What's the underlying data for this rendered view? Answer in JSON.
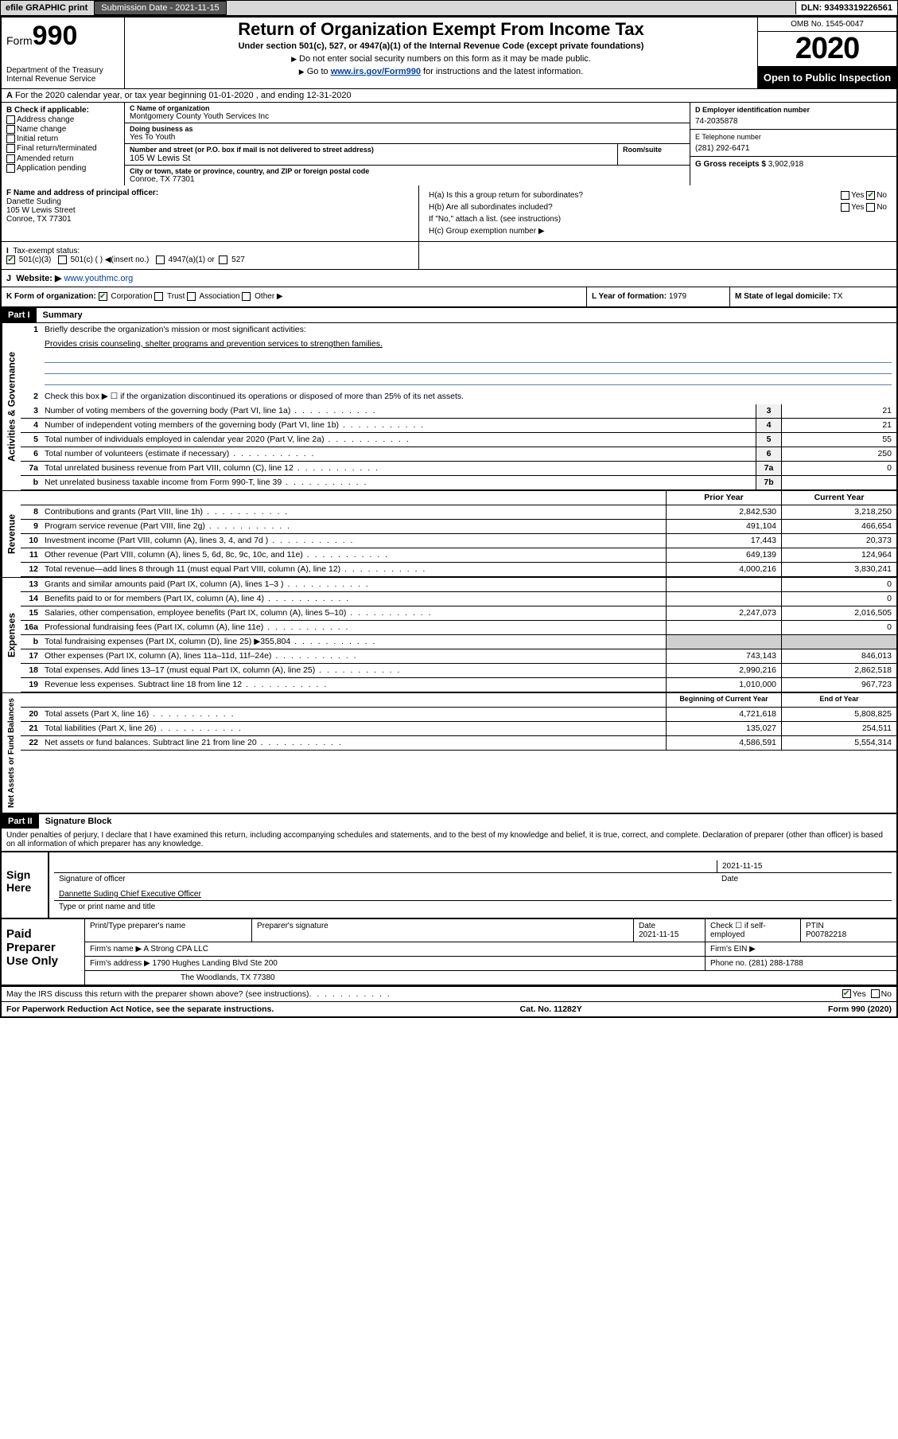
{
  "topbar": {
    "efile": "efile GRAPHIC print",
    "submission_label": "Submission Date - 2021-11-15",
    "dln_label": "DLN: 93493319226561"
  },
  "header": {
    "form_word": "Form",
    "form_num": "990",
    "dept": "Department of the Treasury\nInternal Revenue Service",
    "title": "Return of Organization Exempt From Income Tax",
    "subtitle": "Under section 501(c), 527, or 4947(a)(1) of the Internal Revenue Code (except private foundations)",
    "note1": "Do not enter social security numbers on this form as it may be made public.",
    "note2_pre": "Go to ",
    "note2_link": "www.irs.gov/Form990",
    "note2_post": " for instructions and the latest information.",
    "omb": "OMB No. 1545-0047",
    "year": "2020",
    "open": "Open to Public Inspection"
  },
  "row_a": "For the 2020 calendar year, or tax year beginning 01-01-2020   , and ending 12-31-2020",
  "b": {
    "hdr": "B Check if applicable:",
    "opts": [
      "Address change",
      "Name change",
      "Initial return",
      "Final return/terminated",
      "Amended return",
      "Application pending"
    ]
  },
  "c": {
    "name_lbl": "C Name of organization",
    "name": "Montgomery County Youth Services Inc",
    "dba_lbl": "Doing business as",
    "dba": "Yes To Youth",
    "addr_lbl": "Number and street (or P.O. box if mail is not delivered to street address)",
    "room_lbl": "Room/suite",
    "addr": "105 W Lewis St",
    "city_lbl": "City or town, state or province, country, and ZIP or foreign postal code",
    "city": "Conroe, TX  77301"
  },
  "d": {
    "lbl": "D Employer identification number",
    "val": "74-2035878"
  },
  "e": {
    "lbl": "E Telephone number",
    "val": "(281) 292-6471"
  },
  "g": {
    "lbl": "G Gross receipts $",
    "val": "3,902,918"
  },
  "f": {
    "lbl": "F  Name and address of principal officer:",
    "name": "Danette Suding",
    "addr1": "105 W Lewis Street",
    "addr2": "Conroe, TX  77301"
  },
  "h": {
    "a": "H(a)  Is this a group return for subordinates?",
    "b": "H(b)  Are all subordinates included?",
    "b_note": "If \"No,\" attach a list. (see instructions)",
    "c": "H(c)  Group exemption number ▶",
    "yes": "Yes",
    "no": "No"
  },
  "i": {
    "lbl": "Tax-exempt status:",
    "o1": "501(c)(3)",
    "o2": "501(c) (  ) ◀(insert no.)",
    "o3": "4947(a)(1) or",
    "o4": "527"
  },
  "j": {
    "lbl": "Website: ▶",
    "val": " www.youthmc.org"
  },
  "k": {
    "lbl": "K Form of organization:",
    "o1": "Corporation",
    "o2": "Trust",
    "o3": "Association",
    "o4": "Other ▶"
  },
  "l": {
    "lbl": "L Year of formation:",
    "val": "1979"
  },
  "m": {
    "lbl": "M State of legal domicile:",
    "val": "TX"
  },
  "part1": {
    "hdr": "Part I",
    "title": "Summary"
  },
  "gov": {
    "label": "Activities & Governance",
    "l1_lbl": "Briefly describe the organization's mission or most significant activities:",
    "l1_txt": "Provides crisis counseling, shelter programs and prevention services to strengthen families.",
    "l2": "Check this box ▶ ☐  if the organization discontinued its operations or disposed of more than 25% of its net assets.",
    "rows": [
      {
        "n": "3",
        "t": "Number of voting members of the governing body (Part VI, line 1a)",
        "b": "3",
        "v": "21"
      },
      {
        "n": "4",
        "t": "Number of independent voting members of the governing body (Part VI, line 1b)",
        "b": "4",
        "v": "21"
      },
      {
        "n": "5",
        "t": "Total number of individuals employed in calendar year 2020 (Part V, line 2a)",
        "b": "5",
        "v": "55"
      },
      {
        "n": "6",
        "t": "Total number of volunteers (estimate if necessary)",
        "b": "6",
        "v": "250"
      },
      {
        "n": "7a",
        "t": "Total unrelated business revenue from Part VIII, column (C), line 12",
        "b": "7a",
        "v": "0"
      },
      {
        "n": "b",
        "t": "Net unrelated business taxable income from Form 990-T, line 39",
        "b": "7b",
        "v": ""
      }
    ]
  },
  "cols": {
    "prior": "Prior Year",
    "current": "Current Year",
    "beg": "Beginning of Current Year",
    "end": "End of Year"
  },
  "rev": {
    "label": "Revenue",
    "rows": [
      {
        "n": "8",
        "t": "Contributions and grants (Part VIII, line 1h)",
        "p": "2,842,530",
        "c": "3,218,250"
      },
      {
        "n": "9",
        "t": "Program service revenue (Part VIII, line 2g)",
        "p": "491,104",
        "c": "466,654"
      },
      {
        "n": "10",
        "t": "Investment income (Part VIII, column (A), lines 3, 4, and 7d )",
        "p": "17,443",
        "c": "20,373"
      },
      {
        "n": "11",
        "t": "Other revenue (Part VIII, column (A), lines 5, 6d, 8c, 9c, 10c, and 11e)",
        "p": "649,139",
        "c": "124,964"
      },
      {
        "n": "12",
        "t": "Total revenue—add lines 8 through 11 (must equal Part VIII, column (A), line 12)",
        "p": "4,000,216",
        "c": "3,830,241"
      }
    ]
  },
  "exp": {
    "label": "Expenses",
    "rows": [
      {
        "n": "13",
        "t": "Grants and similar amounts paid (Part IX, column (A), lines 1–3 )",
        "p": "",
        "c": "0"
      },
      {
        "n": "14",
        "t": "Benefits paid to or for members (Part IX, column (A), line 4)",
        "p": "",
        "c": "0"
      },
      {
        "n": "15",
        "t": "Salaries, other compensation, employee benefits (Part IX, column (A), lines 5–10)",
        "p": "2,247,073",
        "c": "2,016,505"
      },
      {
        "n": "16a",
        "t": "Professional fundraising fees (Part IX, column (A), line 11e)",
        "p": "",
        "c": "0"
      },
      {
        "n": "b",
        "t": "Total fundraising expenses (Part IX, column (D), line 25) ▶355,804",
        "p": "shade",
        "c": "shade"
      },
      {
        "n": "17",
        "t": "Other expenses (Part IX, column (A), lines 11a–11d, 11f–24e)",
        "p": "743,143",
        "c": "846,013"
      },
      {
        "n": "18",
        "t": "Total expenses. Add lines 13–17 (must equal Part IX, column (A), line 25)",
        "p": "2,990,216",
        "c": "2,862,518"
      },
      {
        "n": "19",
        "t": "Revenue less expenses. Subtract line 18 from line 12",
        "p": "1,010,000",
        "c": "967,723"
      }
    ]
  },
  "net": {
    "label": "Net Assets or Fund Balances",
    "rows": [
      {
        "n": "20",
        "t": "Total assets (Part X, line 16)",
        "p": "4,721,618",
        "c": "5,808,825"
      },
      {
        "n": "21",
        "t": "Total liabilities (Part X, line 26)",
        "p": "135,027",
        "c": "254,511"
      },
      {
        "n": "22",
        "t": "Net assets or fund balances. Subtract line 21 from line 20",
        "p": "4,586,591",
        "c": "5,554,314"
      }
    ]
  },
  "part2": {
    "hdr": "Part II",
    "title": "Signature Block"
  },
  "perjury": "Under penalties of perjury, I declare that I have examined this return, including accompanying schedules and statements, and to the best of my knowledge and belief, it is true, correct, and complete. Declaration of preparer (other than officer) is based on all information of which preparer has any knowledge.",
  "sign": {
    "here": "Sign Here",
    "sig_lbl": "Signature of officer",
    "date_lbl": "Date",
    "date": "2021-11-15",
    "name": "Dannette Suding Chief Executive Officer",
    "type_lbl": "Type or print name and title"
  },
  "paid": {
    "here": "Paid Preparer Use Only",
    "h1": "Print/Type preparer's name",
    "h2": "Preparer's signature",
    "h3": "Date",
    "h3v": "2021-11-15",
    "h4": "Check ☐ if self-employed",
    "h5": "PTIN",
    "h5v": "P00782218",
    "firm_lbl": "Firm's name   ▶",
    "firm": "A Strong CPA LLC",
    "ein_lbl": "Firm's EIN ▶",
    "addr_lbl": "Firm's address ▶",
    "addr1": "1790 Hughes Landing Blvd Ste 200",
    "addr2": "The Woodlands, TX  77380",
    "phone_lbl": "Phone no.",
    "phone": "(281) 288-1788"
  },
  "discuss": "May the IRS discuss this return with the preparer shown above? (see instructions)",
  "discuss_yes": "Yes",
  "discuss_no": "No",
  "paperwork": "For Paperwork Reduction Act Notice, see the separate instructions.",
  "catno": "Cat. No. 11282Y",
  "formfoot": "Form 990 (2020)"
}
